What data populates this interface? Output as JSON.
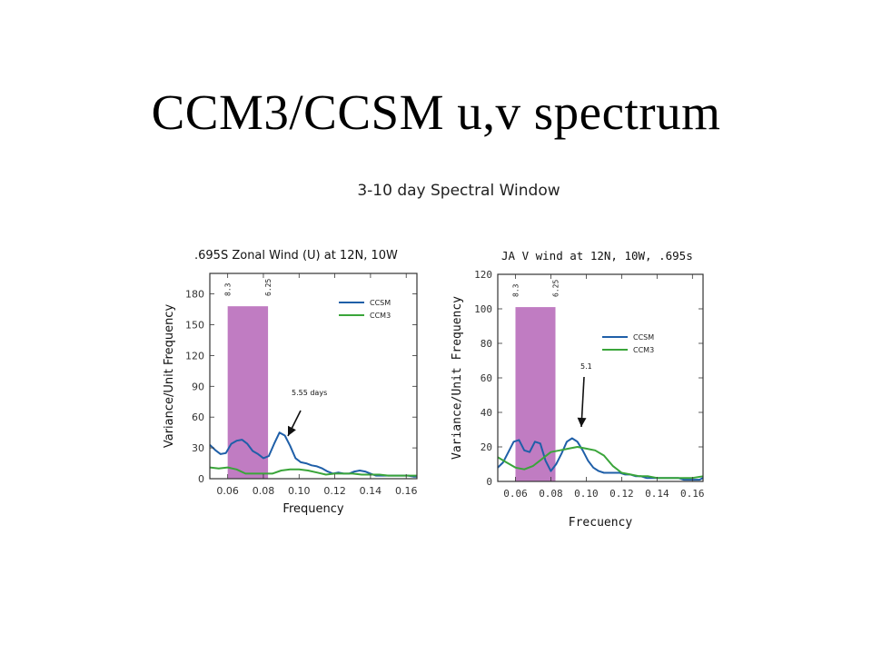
{
  "slide": {
    "title": "CCM3/CCSM u,v spectrum",
    "figure_title": "3-10 day Spectral Window"
  },
  "colors": {
    "CCSM": "#1f5fa8",
    "CCM3": "#3aa53a",
    "window": "#c07cc2",
    "arrow": "#111111"
  },
  "chart_data": [
    {
      "type": "line",
      "title": ".695S Zonal Wind (U) at 12N, 10W",
      "xlabel": "Frequency",
      "ylabel": "Variance/Unit Frequency",
      "xlim": [
        0.05,
        0.166
      ],
      "ylim": [
        0,
        200
      ],
      "xticks": [
        0.06,
        0.08,
        0.1,
        0.12,
        0.14,
        0.16
      ],
      "xtick_labels": [
        "0.06",
        "0.08",
        "0.10",
        "0.12",
        "0.14",
        "0.16"
      ],
      "yticks": [
        0,
        30,
        60,
        90,
        120,
        150,
        180
      ],
      "ytick_labels": [
        "0",
        "30",
        "60",
        "90",
        "120",
        "150",
        "180"
      ],
      "grid": false,
      "legend_position": "top-right",
      "shaded_window": {
        "x0": 0.06,
        "x1": 0.0826,
        "y_top": 168,
        "label_left": "8.3",
        "label_right": "6.25"
      },
      "annotations": [
        {
          "text": "5.55 days",
          "x": 0.093,
          "y": 50
        }
      ],
      "series": [
        {
          "name": "CCSM",
          "x": [
            0.05,
            0.053,
            0.056,
            0.059,
            0.062,
            0.065,
            0.068,
            0.071,
            0.074,
            0.077,
            0.08,
            0.083,
            0.086,
            0.089,
            0.092,
            0.095,
            0.098,
            0.101,
            0.104,
            0.107,
            0.11,
            0.113,
            0.116,
            0.119,
            0.122,
            0.125,
            0.128,
            0.131,
            0.134,
            0.137,
            0.14,
            0.143,
            0.146,
            0.149,
            0.152,
            0.155,
            0.158,
            0.161,
            0.164,
            0.166
          ],
          "y": [
            33,
            28,
            24,
            25,
            34,
            37,
            38,
            34,
            27,
            24,
            20,
            22,
            34,
            45,
            42,
            32,
            20,
            16,
            15,
            13,
            12,
            10,
            7,
            5,
            6,
            5,
            5,
            7,
            8,
            7,
            5,
            3,
            3,
            3,
            3,
            3,
            3,
            3,
            2,
            2
          ]
        },
        {
          "name": "CCM3",
          "x": [
            0.05,
            0.055,
            0.06,
            0.065,
            0.07,
            0.075,
            0.08,
            0.085,
            0.09,
            0.095,
            0.1,
            0.105,
            0.11,
            0.115,
            0.12,
            0.125,
            0.13,
            0.135,
            0.14,
            0.145,
            0.15,
            0.155,
            0.16,
            0.166
          ],
          "y": [
            11,
            10,
            11,
            9,
            5,
            5,
            5,
            5,
            8,
            9,
            9,
            8,
            6,
            4,
            5,
            5,
            5,
            4,
            4,
            4,
            3,
            3,
            3,
            3
          ]
        }
      ]
    },
    {
      "type": "line",
      "title": "JA V wind at 12N, 10W, .695s",
      "xlabel": "Frecuency",
      "ylabel": "Variance/Unit Frequency",
      "xlim": [
        0.05,
        0.166
      ],
      "ylim": [
        0,
        120
      ],
      "xticks": [
        0.06,
        0.08,
        0.1,
        0.12,
        0.14,
        0.16
      ],
      "xtick_labels": [
        "0.06",
        "0.08",
        "0.10",
        "0.12",
        "0.14",
        "0.16"
      ],
      "yticks": [
        0,
        20,
        40,
        60,
        80,
        100,
        120
      ],
      "ytick_labels": [
        "0",
        "20",
        "40",
        "60",
        "80",
        "100",
        "120"
      ],
      "grid": false,
      "legend_position": "center-right",
      "shaded_window": {
        "x0": 0.06,
        "x1": 0.0826,
        "y_top": 101,
        "label_left": "8.3",
        "label_right": "6.25"
      },
      "annotations": [
        {
          "text": "5.1",
          "x": 0.098,
          "y": 30
        }
      ],
      "series": [
        {
          "name": "CCSM",
          "x": [
            0.05,
            0.053,
            0.056,
            0.059,
            0.062,
            0.065,
            0.068,
            0.071,
            0.074,
            0.077,
            0.08,
            0.083,
            0.086,
            0.089,
            0.092,
            0.095,
            0.098,
            0.101,
            0.104,
            0.107,
            0.11,
            0.113,
            0.116,
            0.119,
            0.122,
            0.125,
            0.128,
            0.131,
            0.134,
            0.137,
            0.14,
            0.143,
            0.146,
            0.149,
            0.152,
            0.155,
            0.158,
            0.161,
            0.164,
            0.166
          ],
          "y": [
            8,
            11,
            17,
            23,
            24,
            18,
            17,
            23,
            22,
            12,
            6,
            10,
            16,
            23,
            25,
            23,
            18,
            12,
            8,
            6,
            5,
            5,
            5,
            5,
            4,
            4,
            3,
            3,
            2,
            2,
            2,
            2,
            2,
            2,
            2,
            1,
            1,
            1,
            1,
            2
          ]
        },
        {
          "name": "CCM3",
          "x": [
            0.05,
            0.055,
            0.06,
            0.065,
            0.07,
            0.075,
            0.08,
            0.085,
            0.09,
            0.095,
            0.1,
            0.105,
            0.11,
            0.115,
            0.12,
            0.125,
            0.13,
            0.135,
            0.14,
            0.145,
            0.15,
            0.155,
            0.16,
            0.166
          ],
          "y": [
            14,
            11,
            8,
            7,
            9,
            13,
            17,
            18,
            19,
            20,
            19,
            18,
            15,
            9,
            5,
            4,
            3,
            3,
            2,
            2,
            2,
            2,
            2,
            3
          ]
        }
      ]
    }
  ]
}
